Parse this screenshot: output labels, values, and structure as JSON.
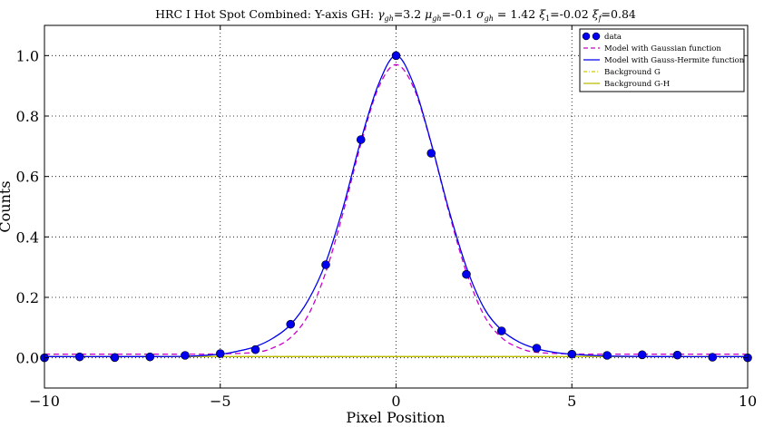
{
  "chart_data": {
    "type": "line",
    "title": "HRC I Hot Spot Combined: Y-axis  GH: γgh=3.2 μgh=-0.1 σgh = 1.42 ξ1=-0.02  ξf=0.84",
    "title_parts": {
      "prefix": "HRC I Hot Spot Combined: Y-axis  GH: ",
      "gamma": "γ",
      "gamma_sub": "gh",
      "gamma_val": "=3.2 ",
      "mu": "μ",
      "mu_sub": "gh",
      "mu_val": "=-0.1 ",
      "sigma": "σ",
      "sigma_sub": "gh",
      "sigma_val": " = 1.42 ",
      "xi1": "ξ",
      "xi1_sub": "1",
      "xi1_val": "=-0.02  ",
      "xif": "ξ",
      "xif_sub": "f",
      "xif_val": "=0.84"
    },
    "xlabel": "Pixel Position",
    "ylabel": "Counts",
    "xlim": [
      -10,
      10
    ],
    "ylim": [
      -0.1,
      1.1
    ],
    "xticks": [
      -10,
      -5,
      0,
      5,
      10
    ],
    "xtick_labels": [
      "−10",
      "−5",
      "0",
      "5",
      "10"
    ],
    "yticks": [
      0.0,
      0.2,
      0.4,
      0.6,
      0.8,
      1.0
    ],
    "ytick_labels": [
      "0.0",
      "0.2",
      "0.4",
      "0.6",
      "0.8",
      "1.0"
    ],
    "grid": true,
    "legend_position": "top-right",
    "legend": [
      {
        "key": "data",
        "label": "data",
        "style": "markers",
        "color": "#0000ee"
      },
      {
        "key": "gauss",
        "label": "Model with Gaussian function",
        "style": "dashed",
        "color": "#cc00cc"
      },
      {
        "key": "gh",
        "label": "Model with Gauss-Hermite function",
        "style": "solid",
        "color": "#0000ee"
      },
      {
        "key": "bg_g",
        "label": "Background G",
        "style": "dashdot",
        "color": "#cccc00"
      },
      {
        "key": "bg_gh",
        "label": "Background G-H",
        "style": "solid",
        "color": "#bbbb00"
      }
    ],
    "series": [
      {
        "name": "data",
        "kind": "scatter",
        "color": "#0000ee",
        "x": [
          -10,
          -9,
          -8,
          -7,
          -6,
          -5,
          -4,
          -3,
          -2,
          -1,
          0,
          1,
          2,
          3,
          4,
          5,
          6,
          7,
          8,
          9,
          10
        ],
        "y": [
          0.0,
          0.003,
          0.001,
          0.003,
          0.008,
          0.014,
          0.027,
          0.111,
          0.308,
          0.722,
          1.0,
          0.677,
          0.276,
          0.089,
          0.032,
          0.012,
          0.008,
          0.01,
          0.009,
          0.002,
          0.0
        ]
      },
      {
        "name": "Model with Gaussian function",
        "kind": "line",
        "color": "#cc00cc",
        "dash": "6,4",
        "x": [
          -10,
          -8,
          -6,
          -5,
          -4,
          -3.5,
          -3,
          -2.5,
          -2,
          -1.5,
          -1,
          -0.5,
          0,
          0.5,
          1,
          1.5,
          2,
          2.5,
          3,
          3.5,
          4,
          5,
          6,
          8,
          10
        ],
        "y": [
          0.012,
          0.012,
          0.012,
          0.013,
          0.018,
          0.033,
          0.067,
          0.141,
          0.283,
          0.483,
          0.708,
          0.894,
          0.97,
          0.894,
          0.708,
          0.483,
          0.283,
          0.141,
          0.067,
          0.033,
          0.018,
          0.013,
          0.012,
          0.012,
          0.012
        ]
      },
      {
        "name": "Model with Gauss-Hermite function",
        "kind": "line",
        "color": "#0000ee",
        "dash": "",
        "x": [
          -10,
          -8,
          -6,
          -5,
          -4.5,
          -4,
          -3.5,
          -3,
          -2.5,
          -2,
          -1.5,
          -1,
          -0.5,
          0,
          0.5,
          1,
          1.5,
          2,
          2.5,
          3,
          3.5,
          4,
          4.5,
          5,
          6,
          8,
          10
        ],
        "y": [
          0.004,
          0.004,
          0.005,
          0.012,
          0.022,
          0.037,
          0.065,
          0.11,
          0.19,
          0.315,
          0.5,
          0.72,
          0.905,
          1.0,
          0.905,
          0.71,
          0.49,
          0.3,
          0.165,
          0.092,
          0.052,
          0.03,
          0.018,
          0.012,
          0.006,
          0.004,
          0.004
        ]
      },
      {
        "name": "Background G",
        "kind": "line",
        "color": "#cccc00",
        "dash": "6,3,2,3",
        "x": [
          -10,
          10
        ],
        "y": [
          0.004,
          0.004
        ]
      },
      {
        "name": "Background G-H",
        "kind": "line",
        "color": "#bbbb00",
        "dash": "",
        "x": [
          -10,
          10
        ],
        "y": [
          0.004,
          0.004
        ]
      }
    ]
  }
}
